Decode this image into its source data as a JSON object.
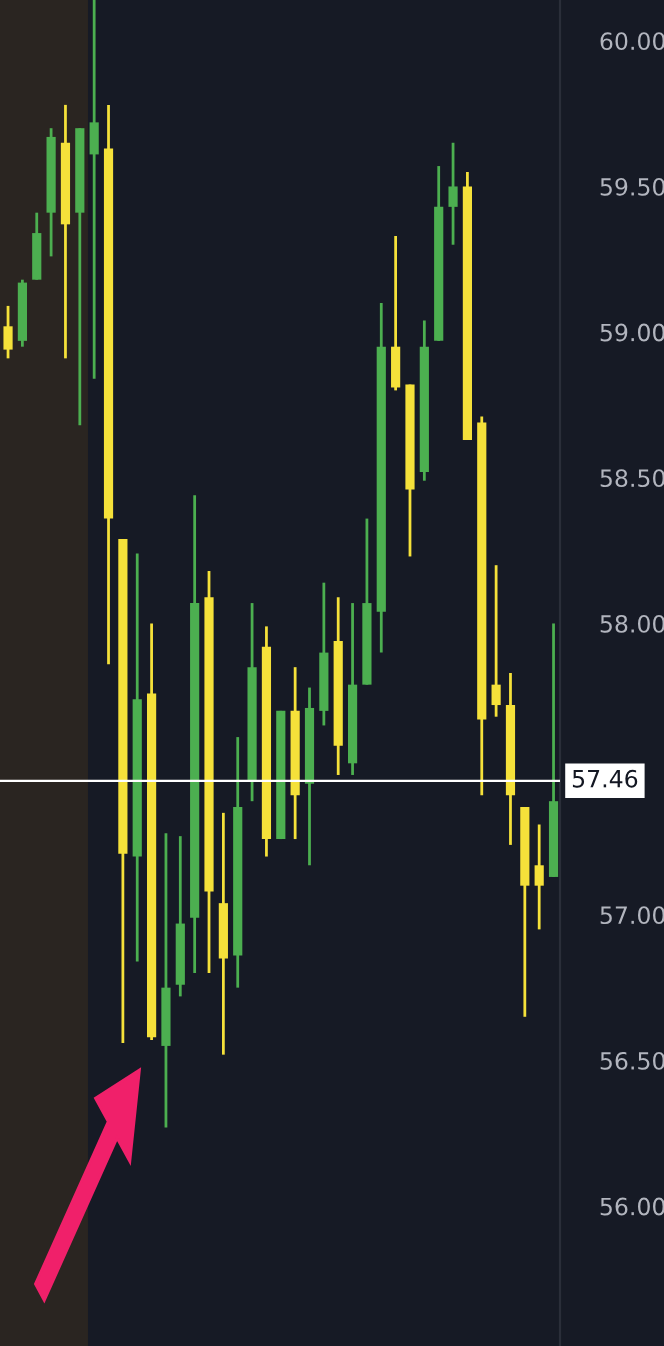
{
  "chart_data": {
    "type": "candlestick",
    "categories": [
      null,
      null,
      null,
      null,
      null,
      null,
      null,
      null,
      null,
      null,
      null,
      null,
      null,
      null,
      null,
      null,
      null,
      null,
      null,
      null,
      null,
      null,
      null,
      null,
      null,
      null,
      null,
      null,
      null,
      null,
      null,
      null,
      null,
      null,
      null,
      null,
      null,
      null,
      null
    ],
    "ohlc": [
      [
        59.02,
        59.09,
        58.91,
        58.94
      ],
      [
        58.97,
        59.18,
        58.95,
        59.17
      ],
      [
        59.18,
        59.41,
        59.18,
        59.34
      ],
      [
        59.41,
        59.7,
        59.26,
        59.67
      ],
      [
        59.65,
        59.78,
        58.91,
        59.37
      ],
      [
        59.41,
        59.7,
        58.68,
        59.7
      ],
      [
        59.61,
        60.14,
        58.84,
        59.72
      ],
      [
        59.63,
        59.78,
        57.86,
        58.36
      ],
      [
        58.29,
        58.29,
        56.56,
        57.21
      ],
      [
        57.2,
        58.24,
        56.84,
        57.74
      ],
      [
        57.76,
        58.0,
        56.57,
        56.58
      ],
      [
        56.55,
        57.28,
        56.27,
        56.75
      ],
      [
        56.76,
        57.27,
        56.72,
        56.97
      ],
      [
        56.99,
        58.44,
        56.8,
        58.07
      ],
      [
        58.09,
        58.18,
        56.8,
        57.08
      ],
      [
        57.04,
        57.35,
        56.52,
        56.85
      ],
      [
        56.86,
        57.61,
        56.75,
        57.37
      ],
      [
        57.46,
        58.07,
        57.39,
        57.85
      ],
      [
        57.92,
        57.99,
        57.2,
        57.26
      ],
      [
        57.26,
        57.7,
        57.26,
        57.7
      ],
      [
        57.7,
        57.85,
        57.26,
        57.41
      ],
      [
        57.45,
        57.78,
        57.17,
        57.71
      ],
      [
        57.7,
        58.14,
        57.65,
        57.9
      ],
      [
        57.94,
        58.09,
        57.48,
        57.58
      ],
      [
        57.52,
        58.07,
        57.48,
        57.79
      ],
      [
        57.79,
        58.36,
        57.79,
        58.07
      ],
      [
        58.04,
        59.1,
        57.9,
        58.95
      ],
      [
        58.95,
        59.33,
        58.8,
        58.81
      ],
      [
        58.82,
        58.82,
        58.23,
        58.46
      ],
      [
        58.52,
        59.04,
        58.49,
        58.95
      ],
      [
        58.97,
        59.57,
        58.97,
        59.43
      ],
      [
        59.43,
        59.65,
        59.3,
        59.5
      ],
      [
        59.5,
        59.55,
        58.63,
        58.63
      ],
      [
        58.69,
        58.71,
        57.41,
        57.67
      ],
      [
        57.79,
        58.2,
        57.68,
        57.72
      ],
      [
        57.72,
        57.83,
        57.24,
        57.41
      ],
      [
        57.37,
        57.37,
        56.65,
        57.1
      ],
      [
        57.17,
        57.31,
        56.95,
        57.1
      ],
      [
        57.13,
        58.0,
        57.13,
        57.39
      ]
    ],
    "colors": [
      "#f5e13a",
      "#4caf50",
      "#4caf50",
      "#4caf50",
      "#f5e13a",
      "#4caf50",
      "#4caf50",
      "#f5e13a",
      "#f5e13a",
      "#4caf50",
      "#f5e13a",
      "#4caf50",
      "#4caf50",
      "#4caf50",
      "#f5e13a",
      "#f5e13a",
      "#4caf50",
      "#4caf50",
      "#f5e13a",
      "#4caf50",
      "#f5e13a",
      "#4caf50",
      "#4caf50",
      "#f5e13a",
      "#4caf50",
      "#4caf50",
      "#4caf50",
      "#f5e13a",
      "#f5e13a",
      "#4caf50",
      "#4caf50",
      "#4caf50",
      "#f5e13a",
      "#f5e13a",
      "#f5e13a",
      "#f5e13a",
      "#f5e13a",
      "#f5e13a",
      "#4caf50"
    ],
    "ylim": [
      55.52,
      60.14
    ],
    "yticks": [
      {
        "value": 56,
        "label": "56.00"
      },
      {
        "value": 56.5,
        "label": "56.50"
      },
      {
        "value": 57,
        "label": "57.00"
      },
      {
        "value": 58,
        "label": "58.00"
      },
      {
        "value": 58.5,
        "label": "58.50"
      },
      {
        "value": 59,
        "label": "59.00"
      },
      {
        "value": 59.5,
        "label": "59.50"
      },
      {
        "value": 60,
        "label": "60.00"
      }
    ],
    "ref_lines": [
      {
        "axis": "y",
        "value": 57.46,
        "label": "57.46",
        "color": "#ffffff"
      }
    ],
    "tick_labels": "y",
    "grid": false
  }
}
